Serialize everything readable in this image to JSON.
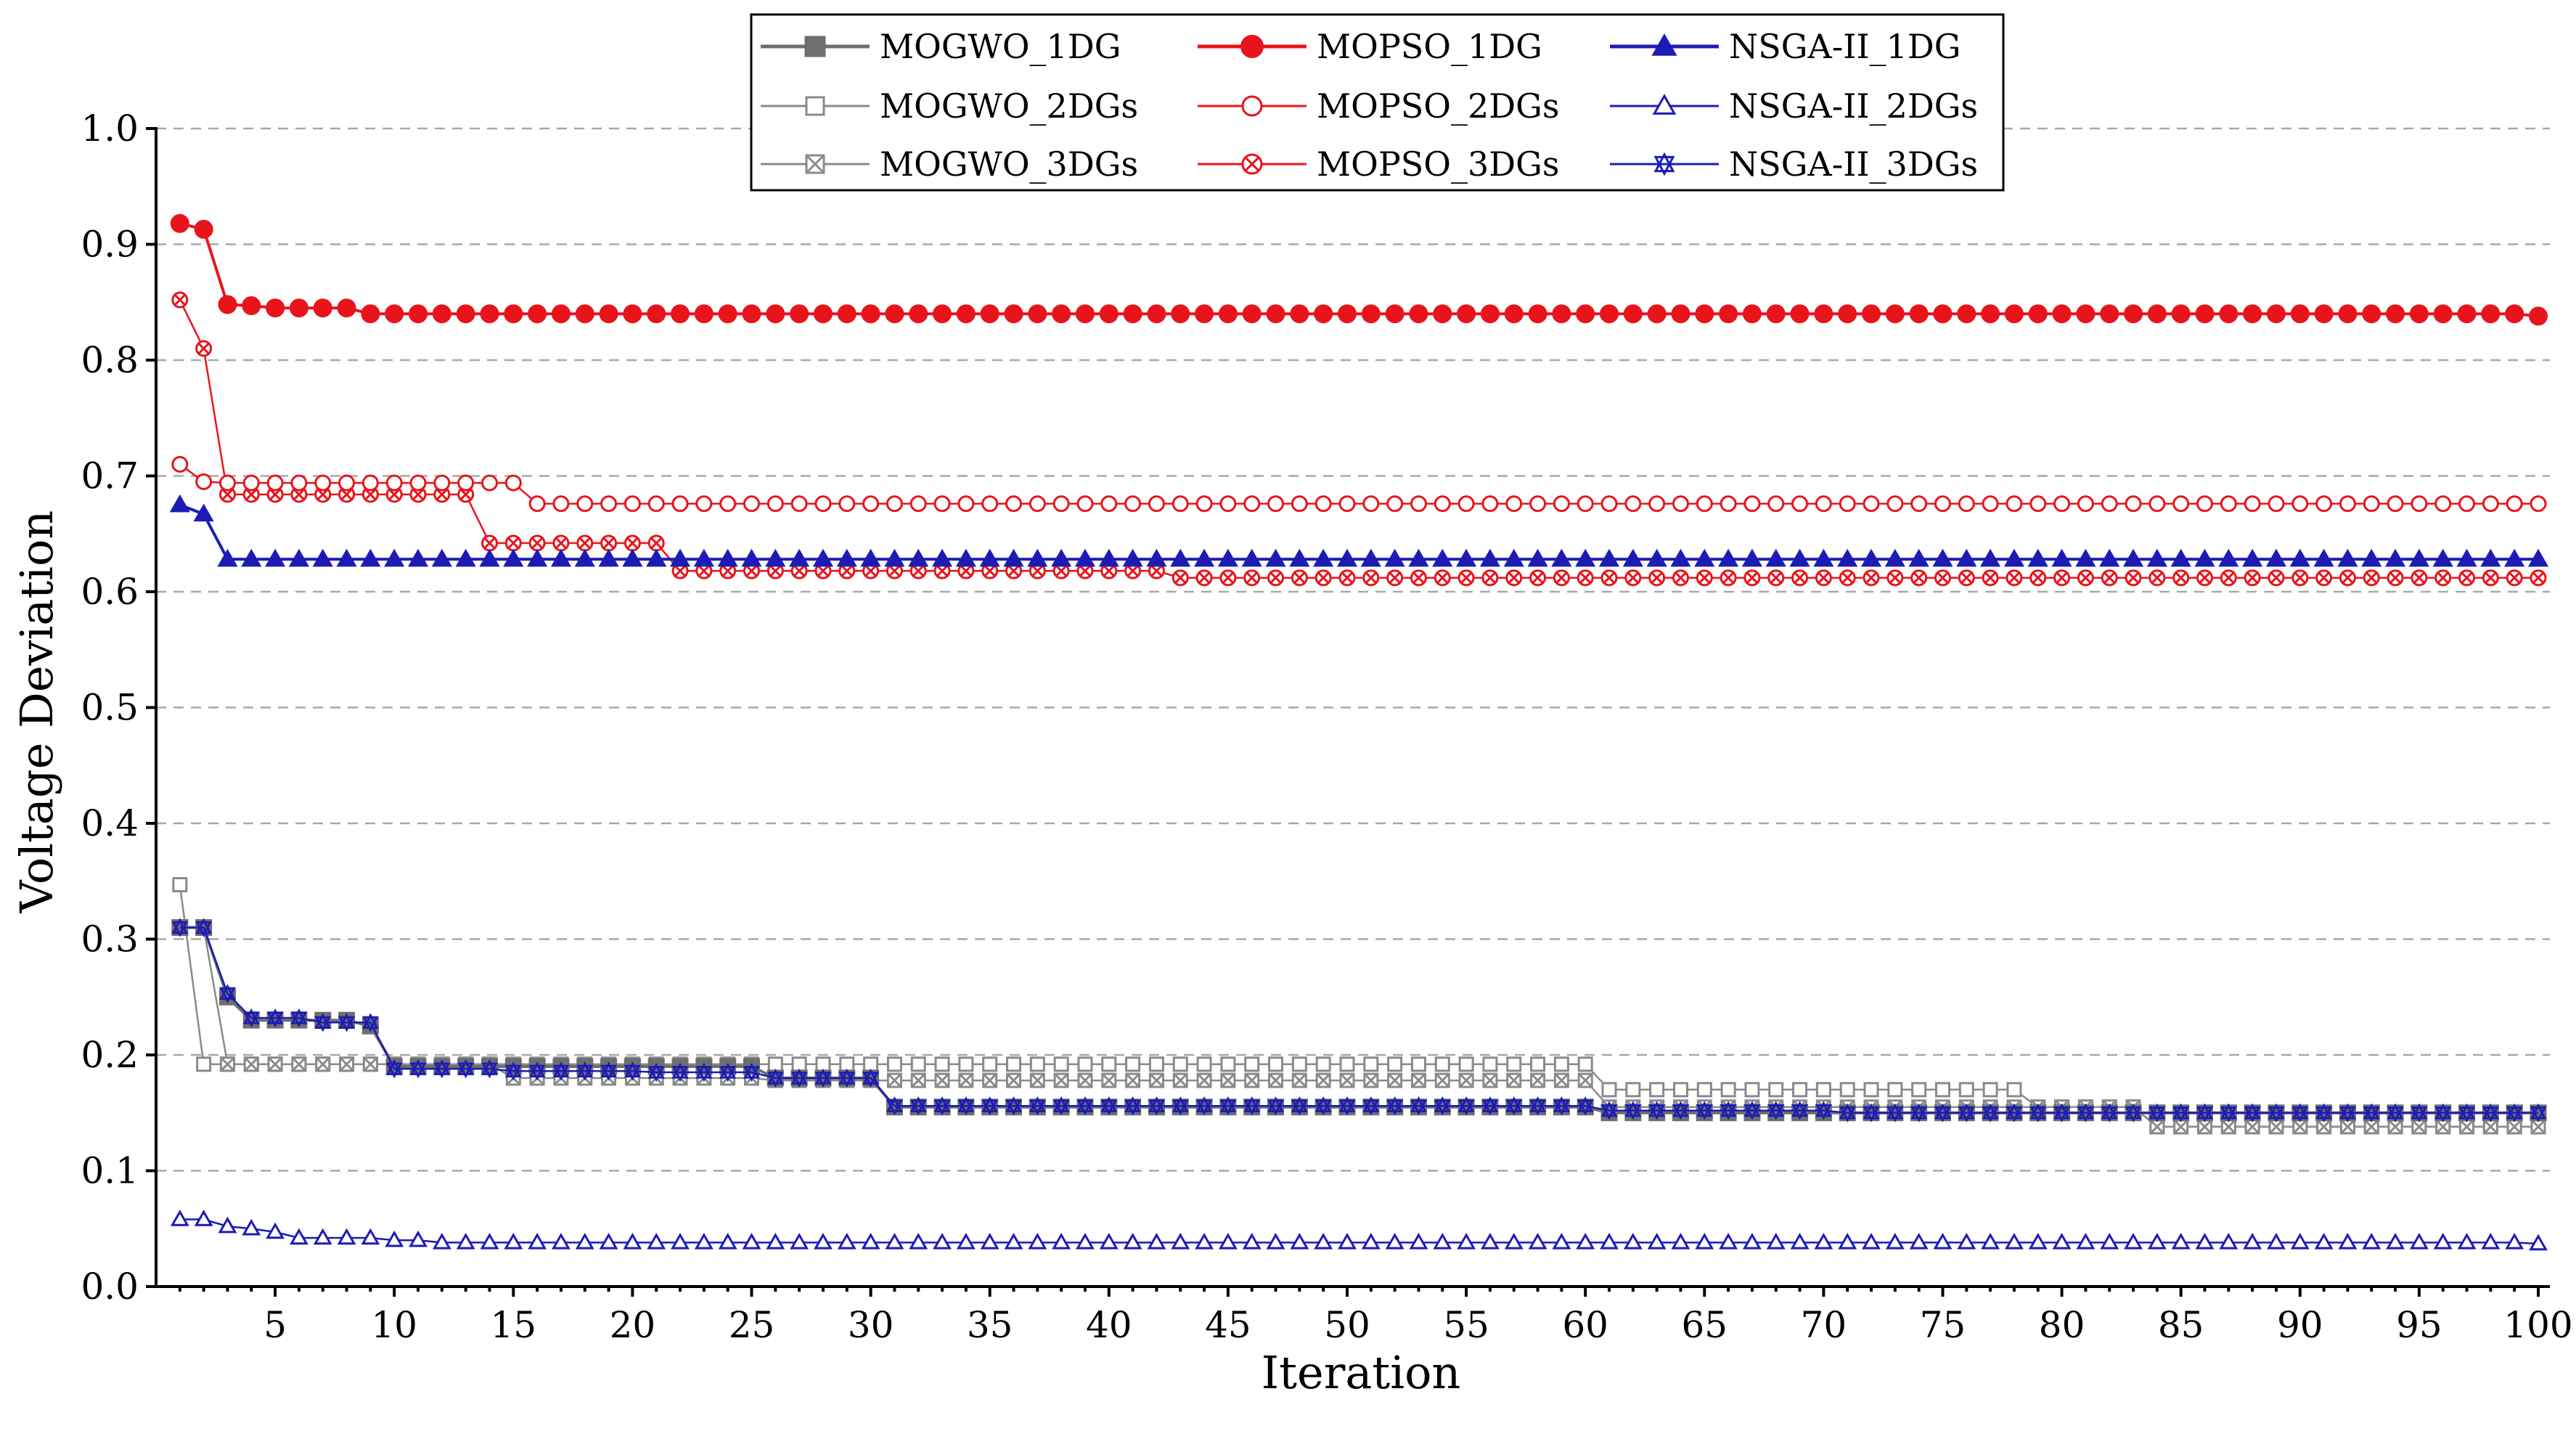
{
  "chart_data": {
    "type": "line",
    "title": "",
    "xlabel": "Iteration",
    "ylabel": "Voltage Deviation",
    "xlim": [
      0,
      100
    ],
    "ylim": [
      0,
      1.0
    ],
    "grid": true,
    "legend_position": "top-center",
    "x_ticks": [
      5,
      10,
      15,
      20,
      25,
      30,
      35,
      40,
      45,
      50,
      55,
      60,
      65,
      70,
      75,
      80,
      85,
      90,
      95,
      100
    ],
    "x_tick_labels": [
      "5",
      "10",
      "15",
      "20",
      "25",
      "30",
      "35",
      "40",
      "45",
      "50",
      "55",
      "60",
      "65",
      "70",
      "75",
      "80",
      "85",
      "90",
      "95",
      "100"
    ],
    "y_ticks": [
      0,
      0.1,
      0.2,
      0.3,
      0.4,
      0.5,
      0.6,
      0.7,
      0.8,
      0.9,
      1.0
    ],
    "y_tick_labels": [
      "0.0",
      "0.1",
      "0.2",
      "0.3",
      "0.4",
      "0.5",
      "0.6",
      "0.7",
      "0.8",
      "0.9",
      "1.0"
    ],
    "series": [
      {
        "name": "MOGWO_1DG",
        "color": "#6e6e6e",
        "marker": "filled-square",
        "segments": [
          [
            1,
            0.31
          ],
          [
            2,
            0.31
          ],
          [
            3,
            0.25
          ],
          [
            4,
            0.23
          ],
          [
            8,
            0.23
          ],
          [
            9,
            0.225
          ],
          [
            10,
            0.19
          ],
          [
            25,
            0.19
          ],
          [
            26,
            0.18
          ],
          [
            30,
            0.18
          ],
          [
            31,
            0.155
          ],
          [
            60,
            0.155
          ],
          [
            61,
            0.15
          ],
          [
            100,
            0.15
          ]
        ]
      },
      {
        "name": "MOGWO_2DGs",
        "color": "#8a8a8a",
        "marker": "open-square",
        "segments": [
          [
            1,
            0.347
          ],
          [
            2,
            0.192
          ],
          [
            60,
            0.192
          ],
          [
            61,
            0.17
          ],
          [
            78,
            0.17
          ],
          [
            79,
            0.155
          ],
          [
            83,
            0.155
          ],
          [
            84,
            0.138
          ],
          [
            100,
            0.138
          ]
        ]
      },
      {
        "name": "MOGWO_3DGs",
        "color": "#8a8a8a",
        "marker": "crossed-square",
        "segments": [
          [
            1,
            0.31
          ],
          [
            2,
            0.31
          ],
          [
            3,
            0.192
          ],
          [
            14,
            0.192
          ],
          [
            15,
            0.18
          ],
          [
            25,
            0.18
          ],
          [
            26,
            0.178
          ],
          [
            29,
            0.178
          ],
          [
            30,
            0.178
          ],
          [
            60,
            0.178
          ],
          [
            61,
            0.155
          ],
          [
            83,
            0.155
          ],
          [
            84,
            0.138
          ],
          [
            100,
            0.138
          ]
        ]
      },
      {
        "name": "MOPSO_1DG",
        "color": "#e8141c",
        "marker": "filled-circle",
        "segments": [
          [
            1,
            0.918
          ],
          [
            2,
            0.913
          ],
          [
            3,
            0.848
          ],
          [
            4,
            0.847
          ],
          [
            5,
            0.845
          ],
          [
            8,
            0.845
          ],
          [
            9,
            0.84
          ],
          [
            100,
            0.838
          ]
        ]
      },
      {
        "name": "MOPSO_2DGs",
        "color": "#e8141c",
        "marker": "open-circle",
        "segments": [
          [
            1,
            0.71
          ],
          [
            2,
            0.695
          ],
          [
            3,
            0.694
          ],
          [
            15,
            0.694
          ],
          [
            16,
            0.676
          ],
          [
            100,
            0.676
          ]
        ]
      },
      {
        "name": "MOPSO_3DGs",
        "color": "#e8141c",
        "marker": "crossed-circle",
        "segments": [
          [
            1,
            0.852
          ],
          [
            2,
            0.81
          ],
          [
            3,
            0.684
          ],
          [
            13,
            0.684
          ],
          [
            14,
            0.642
          ],
          [
            21,
            0.642
          ],
          [
            22,
            0.618
          ],
          [
            42,
            0.618
          ],
          [
            43,
            0.612
          ],
          [
            100,
            0.612
          ]
        ]
      },
      {
        "name": "NSGA-II_1DG",
        "color": "#1c1cb4",
        "marker": "filled-triangle",
        "segments": [
          [
            1,
            0.675
          ],
          [
            2,
            0.667
          ],
          [
            3,
            0.628
          ],
          [
            100,
            0.628
          ]
        ]
      },
      {
        "name": "NSGA-II_2DGs",
        "color": "#1c1cb4",
        "marker": "open-triangle",
        "segments": [
          [
            1,
            0.058
          ],
          [
            2,
            0.058
          ],
          [
            3,
            0.052
          ],
          [
            4,
            0.05
          ],
          [
            5,
            0.047
          ],
          [
            6,
            0.042
          ],
          [
            10,
            0.04
          ],
          [
            12,
            0.038
          ],
          [
            100,
            0.037
          ]
        ]
      },
      {
        "name": "NSGA-II_3DGs",
        "color": "#1c1cb4",
        "marker": "double-cross",
        "segments": [
          [
            1,
            0.31
          ],
          [
            2,
            0.31
          ],
          [
            3,
            0.253
          ],
          [
            4,
            0.232
          ],
          [
            6,
            0.232
          ],
          [
            7,
            0.228
          ],
          [
            9,
            0.228
          ],
          [
            10,
            0.188
          ],
          [
            14,
            0.188
          ],
          [
            15,
            0.186
          ],
          [
            20,
            0.186
          ],
          [
            21,
            0.185
          ],
          [
            25,
            0.185
          ],
          [
            26,
            0.18
          ],
          [
            30,
            0.18
          ],
          [
            31,
            0.156
          ],
          [
            60,
            0.156
          ],
          [
            61,
            0.152
          ],
          [
            70,
            0.152
          ],
          [
            71,
            0.15
          ],
          [
            100,
            0.15
          ]
        ]
      }
    ]
  }
}
